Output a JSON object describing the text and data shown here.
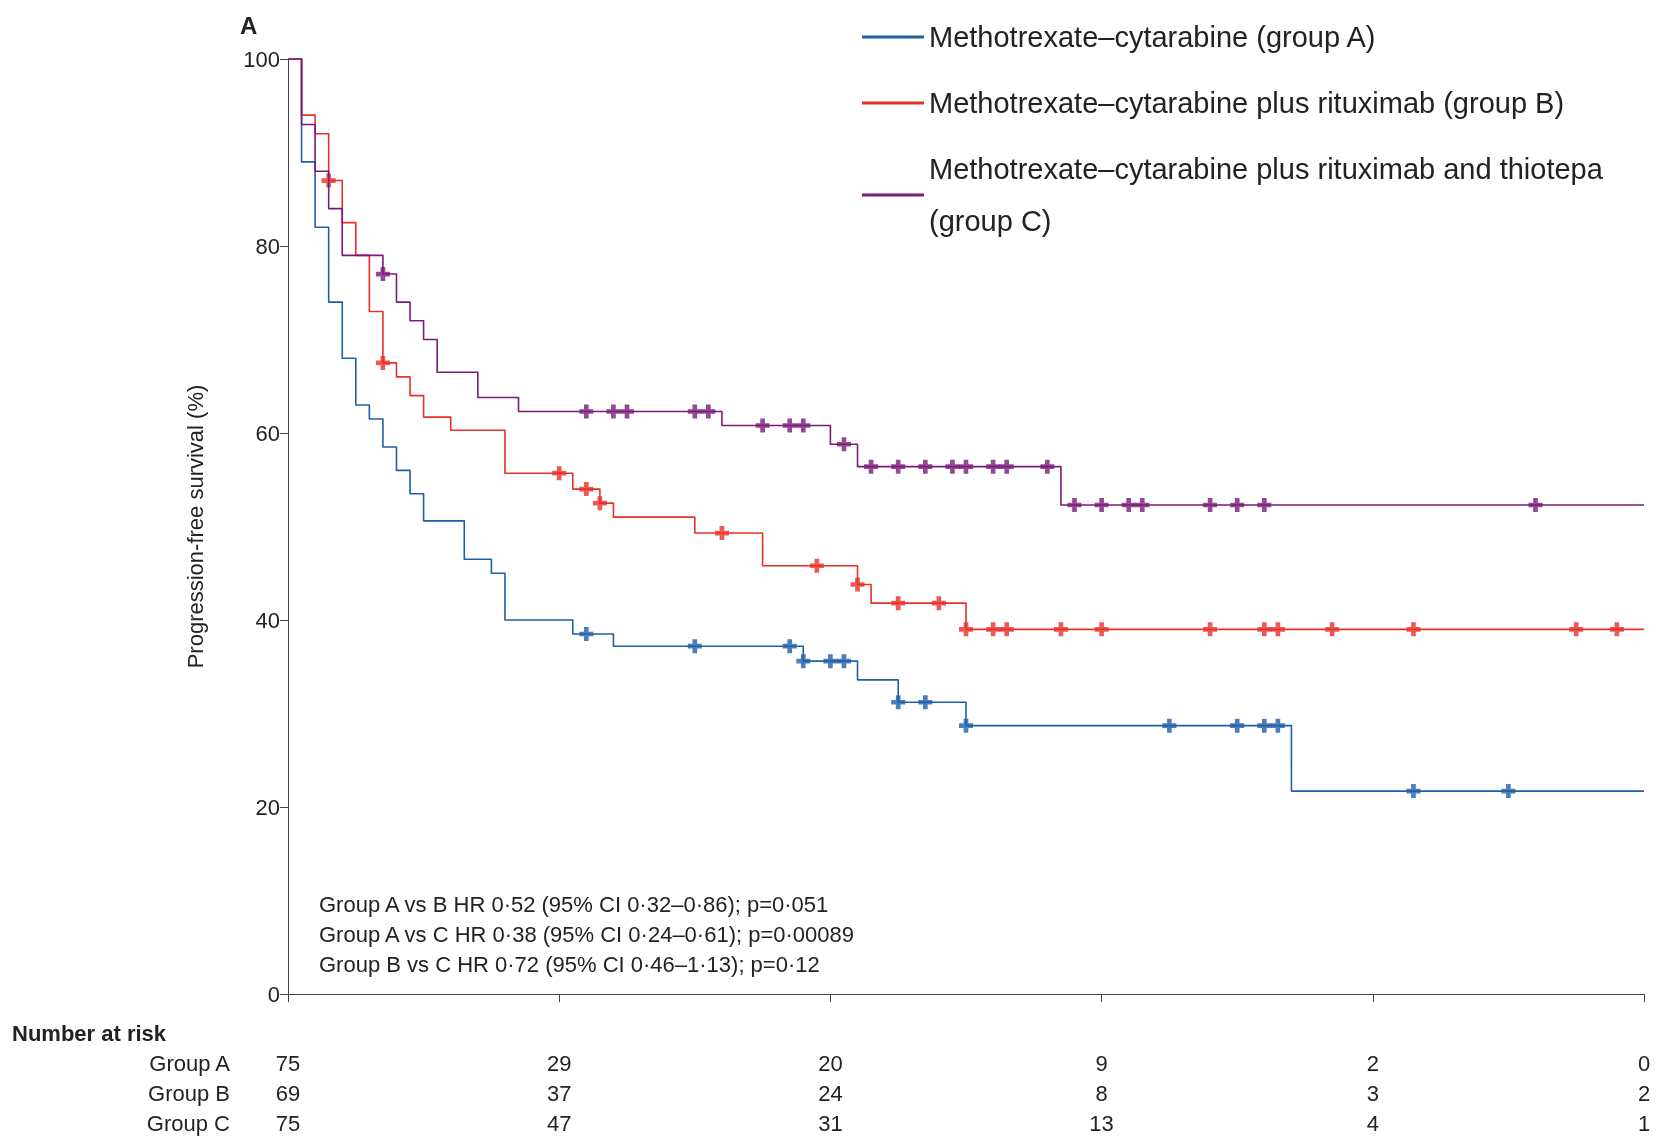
{
  "chart_data": {
    "type": "step",
    "title": "A",
    "ylabel": "Progression-free survival (%)",
    "categories": [
      null,
      null,
      null,
      null,
      null,
      null,
      null,
      null,
      null,
      null,
      null,
      null,
      null,
      null,
      null,
      null,
      null,
      null,
      null,
      null,
      null,
      null,
      null,
      null,
      null,
      null,
      null,
      null,
      null,
      null,
      null,
      null,
      null,
      null,
      null,
      null,
      null,
      null,
      null,
      null,
      null,
      null,
      null,
      null,
      null,
      null,
      null,
      null,
      null,
      null,
      null,
      null,
      null,
      null,
      null,
      null,
      null,
      null,
      null,
      null,
      null,
      null,
      null,
      null,
      null,
      null,
      null,
      null,
      null,
      null,
      null,
      null,
      null,
      null,
      null,
      null,
      null,
      null,
      null,
      null,
      null,
      null,
      null,
      null,
      null,
      null,
      null,
      null,
      null,
      null,
      null,
      null,
      null,
      null,
      null,
      null,
      null,
      null,
      null,
      null,
      null
    ],
    "ylim": [
      0,
      100
    ],
    "yticks": [
      0,
      20,
      40,
      60,
      80,
      100
    ],
    "grid": false,
    "legend": "top right",
    "series": [
      {
        "name": "Methotrexate–cytarabine (group A)",
        "color": "#1f5fa8",
        "values": [
          100,
          89,
          82,
          74,
          68,
          63,
          61.5,
          58.5,
          56,
          53.5,
          50.6,
          50.6,
          50.6,
          46.5,
          46.5,
          45,
          40,
          40,
          40,
          40,
          40,
          38.5,
          38.5,
          38.5,
          37.2,
          37.2,
          37.2,
          37.2,
          37.2,
          37.2,
          37.2,
          37.2,
          37.2,
          37.2,
          37.2,
          37.2,
          37.2,
          37.2,
          35.6,
          35.6,
          35.6,
          35.6,
          33.6,
          33.6,
          33.6,
          31.2,
          31.2,
          31.2,
          31.2,
          31.2,
          28.7,
          28.7,
          28.7,
          28.7,
          28.7,
          28.7,
          28.7,
          28.7,
          28.7,
          28.7,
          28.7,
          28.7,
          28.7,
          28.7,
          28.7,
          28.7,
          28.7,
          28.7,
          28.7,
          28.7,
          28.7,
          28.7,
          28.7,
          28.7,
          21.7,
          21.7,
          21.7,
          21.7,
          21.7,
          21.7,
          21.7,
          21.7,
          21.7,
          21.7,
          21.7,
          21.7,
          21.7,
          21.7,
          21.7,
          21.7,
          21.7,
          21.7,
          21.7,
          21.7,
          21.7,
          21.7,
          21.7,
          21.7,
          21.7,
          21.7,
          21.7
        ]
      },
      {
        "name": "Methotrexate–cytarabine plus rituximab (group B)",
        "color": "#e8302a",
        "values": [
          100,
          94,
          92,
          87,
          82.5,
          79,
          73,
          67.5,
          66,
          64,
          61.7,
          61.7,
          60.3,
          60.3,
          60.3,
          60.3,
          55.7,
          55.7,
          55.7,
          55.7,
          55.7,
          54,
          54,
          52.5,
          51,
          51,
          51,
          51,
          51,
          51,
          49.3,
          49.3,
          49.3,
          49.3,
          49.3,
          45.8,
          45.8,
          45.8,
          45.8,
          45.8,
          45.8,
          45.8,
          43.8,
          41.8,
          41.8,
          41.8,
          41.8,
          41.8,
          41.8,
          41.8,
          39,
          39,
          39,
          39,
          39,
          39,
          39,
          39,
          39,
          39,
          39,
          39,
          39,
          39,
          39,
          39,
          39,
          39,
          39,
          39,
          39,
          39,
          39,
          39,
          39,
          39,
          39,
          39,
          39,
          39,
          39,
          39,
          39,
          39,
          39,
          39,
          39,
          39,
          39,
          39,
          39,
          39,
          39,
          39,
          39,
          39,
          39,
          39,
          39,
          39,
          39
        ]
      },
      {
        "name": "Methotrexate–cytarabine plus rituximab and thiotepa (group C)",
        "color": "#7b1a78",
        "values": [
          100,
          93,
          88,
          84,
          79,
          79,
          79,
          77,
          74,
          72,
          70,
          66.5,
          66.5,
          66.5,
          63.8,
          63.8,
          63.8,
          62.3,
          62.3,
          62.3,
          62.3,
          62.3,
          62.3,
          62.3,
          62.3,
          62.3,
          62.3,
          62.3,
          62.3,
          62.3,
          62.3,
          62.3,
          60.8,
          60.8,
          60.8,
          60.8,
          60.8,
          60.8,
          60.8,
          60.8,
          58.8,
          58.8,
          56.4,
          56.4,
          56.4,
          56.4,
          56.4,
          56.4,
          56.4,
          56.4,
          56.4,
          56.4,
          56.4,
          56.4,
          56.4,
          56.4,
          56.4,
          52.3,
          52.3,
          52.3,
          52.3,
          52.3,
          52.3,
          52.3,
          52.3,
          52.3,
          52.3,
          52.3,
          52.3,
          52.3,
          52.3,
          52.3,
          52.3,
          52.3,
          52.3,
          52.3,
          52.3,
          52.3,
          52.3,
          52.3,
          52.3,
          52.3,
          52.3,
          52.3,
          52.3,
          52.3,
          52.3,
          52.3,
          52.3,
          52.3,
          52.3,
          52.3,
          52.3,
          52.3,
          52.3,
          52.3,
          52.3,
          52.3,
          52.3,
          52.3,
          52.3
        ]
      },
      {
        "type": "scatter",
        "marker": "cross",
        "color": "#1f5fa8",
        "values": [
          null,
          null,
          null,
          null,
          null,
          null,
          null,
          null,
          null,
          null,
          null,
          null,
          null,
          null,
          null,
          null,
          null,
          null,
          null,
          null,
          null,
          null,
          38.5,
          null,
          null,
          null,
          null,
          null,
          null,
          null,
          37.2,
          null,
          null,
          null,
          null,
          null,
          null,
          37.2,
          35.6,
          null,
          35.6,
          35.6,
          null,
          null,
          null,
          31.2,
          null,
          31.2,
          null,
          null,
          28.7,
          null,
          null,
          null,
          null,
          null,
          null,
          null,
          null,
          null,
          null,
          null,
          null,
          null,
          null,
          28.7,
          null,
          null,
          null,
          null,
          28.7,
          null,
          28.7,
          28.7,
          null,
          null,
          null,
          null,
          null,
          null,
          null,
          null,
          null,
          21.7,
          null,
          null,
          null,
          null,
          null,
          null,
          21.7,
          null,
          null,
          null,
          null,
          null,
          null,
          null,
          null,
          null,
          null
        ]
      },
      {
        "type": "scatter",
        "marker": "cross",
        "color": "#e8302a",
        "values": [
          null,
          null,
          null,
          87,
          null,
          null,
          null,
          67.5,
          null,
          null,
          null,
          null,
          null,
          null,
          null,
          null,
          null,
          null,
          null,
          null,
          55.7,
          null,
          54,
          52.5,
          null,
          null,
          null,
          null,
          null,
          null,
          null,
          null,
          49.3,
          null,
          null,
          null,
          null,
          null,
          null,
          45.8,
          null,
          null,
          43.8,
          null,
          null,
          41.8,
          null,
          null,
          41.8,
          null,
          39,
          null,
          39,
          39,
          null,
          null,
          null,
          39,
          null,
          null,
          39,
          null,
          null,
          null,
          null,
          null,
          null,
          null,
          39,
          null,
          null,
          null,
          39,
          39,
          null,
          null,
          null,
          39,
          null,
          null,
          null,
          null,
          null,
          39,
          null,
          null,
          null,
          null,
          null,
          null,
          null,
          null,
          null,
          null,
          null,
          39,
          null,
          null,
          39,
          null,
          null
        ]
      },
      {
        "type": "scatter",
        "marker": "cross",
        "color": "#7b1a78",
        "values": [
          null,
          null,
          null,
          null,
          null,
          null,
          null,
          77,
          null,
          null,
          null,
          null,
          null,
          null,
          null,
          null,
          null,
          null,
          null,
          null,
          null,
          null,
          62.3,
          null,
          62.3,
          62.3,
          null,
          null,
          null,
          null,
          62.3,
          62.3,
          null,
          null,
          null,
          60.8,
          null,
          60.8,
          60.8,
          null,
          null,
          58.8,
          null,
          56.4,
          null,
          56.4,
          null,
          56.4,
          null,
          56.4,
          56.4,
          null,
          56.4,
          56.4,
          null,
          null,
          56.4,
          null,
          52.3,
          null,
          52.3,
          null,
          52.3,
          52.3,
          null,
          null,
          null,
          null,
          52.3,
          null,
          52.3,
          null,
          52.3,
          null,
          null,
          null,
          null,
          null,
          null,
          null,
          null,
          null,
          null,
          null,
          null,
          null,
          null,
          null,
          null,
          null,
          null,
          null,
          52.3,
          null,
          null,
          null,
          null,
          null,
          null,
          null,
          null
        ]
      }
    ],
    "annotations": [
      "Group A vs B HR 0·52 (95% CI 0·32–0·86); p=0·051",
      "Group A vs C HR 0·38 (95% CI 0·24–0·61); p=0·00089",
      "Group B vs C HR 0·72 (95% CI 0·46–1·13); p=0·12",
      "Number at risk",
      "Group A",
      "75",
      "29",
      "20",
      "9",
      "2",
      "0",
      "Group B",
      "69",
      "37",
      "24",
      "8",
      "3",
      "2",
      "Group C",
      "75",
      "47",
      "31",
      "13",
      "4",
      "1"
    ]
  }
}
